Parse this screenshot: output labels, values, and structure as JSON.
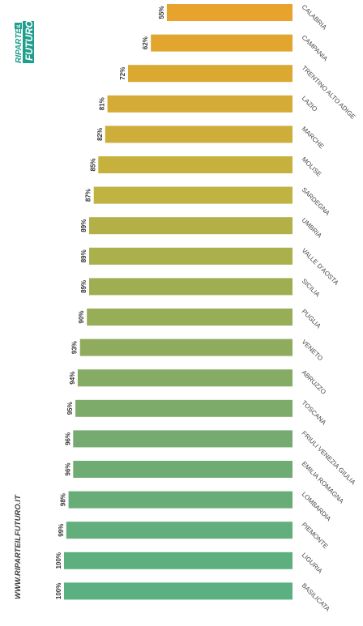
{
  "brand": {
    "logo_line1": "RIPARTE",
    "logo_badge": "IL",
    "logo_line2": "FUTURO",
    "website": "WWW.RIPARTEILFUTURO.IT",
    "logo_color": "#1f9e8e"
  },
  "chart_data": {
    "type": "bar",
    "orientation": "horizontal",
    "categories": [
      "CALABRIA",
      "CAMPANIA",
      "TRENTINO ALTO ADIGE",
      "LAZIO",
      "MARCHE",
      "MOLISE",
      "SARDEGNA",
      "UMBRIA",
      "VALLE D'AOSTA",
      "SICILIA",
      "PUGLIA",
      "VENETO",
      "ABRUZZO",
      "TOSCANA",
      "FRIULI VENEZIA GIULIA",
      "EMILIA ROMAGNA",
      "LOMBARDIA",
      "PIEMONTE",
      "LIGURIA",
      "BASILICATA"
    ],
    "values": [
      55,
      62,
      72,
      81,
      82,
      85,
      87,
      89,
      89,
      89,
      90,
      93,
      94,
      95,
      96,
      96,
      98,
      99,
      100,
      100
    ],
    "labels": [
      "55%",
      "62%",
      "72%",
      "81%",
      "82%",
      "85%",
      "87%",
      "89%",
      "89%",
      "89%",
      "90%",
      "93%",
      "94%",
      "95%",
      "96%",
      "96%",
      "98%",
      "99%",
      "100%",
      "100%"
    ],
    "xlim": [
      0,
      100
    ],
    "grid": false,
    "legend": "none",
    "colors": [
      "#e8a32c",
      "#e2a52e",
      "#dba832",
      "#d4ab36",
      "#cdae3a",
      "#c6b13e",
      "#bfb442",
      "#b2b046",
      "#a9b04c",
      "#a0ae52",
      "#98ad58",
      "#8fac5e",
      "#86ab64",
      "#7dab6a",
      "#75ab70",
      "#6eac74",
      "#68ad78",
      "#62ae7c",
      "#5eaf7f",
      "#5ab081"
    ]
  }
}
